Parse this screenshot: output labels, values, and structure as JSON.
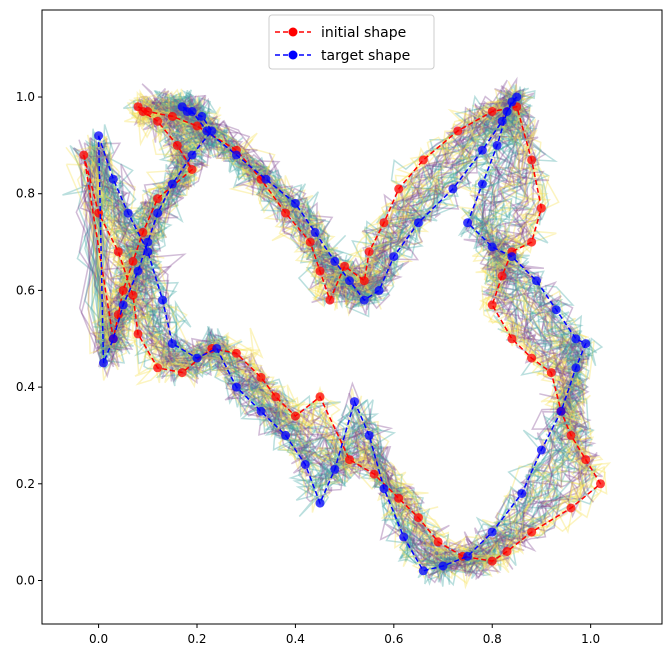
{
  "chart_data": {
    "type": "line",
    "title": "",
    "xlabel": "",
    "ylabel": "",
    "xlim": [
      -0.115,
      1.145
    ],
    "ylim": [
      -0.09,
      1.18
    ],
    "xticks": [
      0.0,
      0.2,
      0.4,
      0.6,
      0.8,
      1.0
    ],
    "yticks": [
      0.0,
      0.2,
      0.4,
      0.6,
      0.8,
      1.0
    ],
    "xtick_labels": [
      "0.0",
      "0.2",
      "0.4",
      "0.6",
      "0.8",
      "1.0"
    ],
    "ytick_labels": [
      "0.0",
      "0.2",
      "0.4",
      "0.6",
      "0.8",
      "1.0"
    ],
    "grid": false,
    "legend": {
      "placement": "top-center"
    },
    "series": [
      {
        "name": "initial shape",
        "color": "#ff0000",
        "linestyle": "dashed",
        "marker": "circle",
        "x": [
          -0.03,
          0.0,
          0.04,
          0.07,
          0.08,
          0.12,
          0.17,
          0.23,
          0.28,
          0.33,
          0.36,
          0.4,
          0.45,
          0.51,
          0.56,
          0.61,
          0.65,
          0.69,
          0.74,
          0.8,
          0.83,
          0.88,
          0.96,
          1.02,
          0.99,
          0.96,
          0.94,
          0.92,
          0.88,
          0.84,
          0.8,
          0.82,
          0.84,
          0.88,
          0.9,
          0.88,
          0.85,
          0.8,
          0.73,
          0.66,
          0.61,
          0.58,
          0.55,
          0.54,
          0.5,
          0.47,
          0.45,
          0.43,
          0.38,
          0.33,
          0.28,
          0.2,
          0.15,
          0.1,
          0.08,
          0.09,
          0.12,
          0.16,
          0.19,
          0.12,
          0.09,
          0.07,
          0.05,
          0.04,
          0.03
        ],
        "y": [
          0.88,
          0.76,
          0.68,
          0.59,
          0.51,
          0.44,
          0.43,
          0.48,
          0.47,
          0.42,
          0.38,
          0.34,
          0.38,
          0.25,
          0.22,
          0.17,
          0.13,
          0.08,
          0.05,
          0.04,
          0.06,
          0.1,
          0.15,
          0.2,
          0.25,
          0.3,
          0.35,
          0.43,
          0.46,
          0.5,
          0.57,
          0.63,
          0.68,
          0.7,
          0.77,
          0.87,
          0.98,
          0.97,
          0.93,
          0.87,
          0.81,
          0.74,
          0.68,
          0.62,
          0.65,
          0.58,
          0.64,
          0.7,
          0.76,
          0.83,
          0.89,
          0.94,
          0.96,
          0.97,
          0.98,
          0.97,
          0.95,
          0.9,
          0.85,
          0.79,
          0.72,
          0.66,
          0.6,
          0.55,
          0.5
        ]
      },
      {
        "name": "target shape",
        "color": "#0000ff",
        "linestyle": "dashed",
        "marker": "circle",
        "x": [
          0.0,
          0.03,
          0.06,
          0.1,
          0.13,
          0.15,
          0.2,
          0.24,
          0.28,
          0.33,
          0.38,
          0.42,
          0.45,
          0.48,
          0.52,
          0.55,
          0.58,
          0.62,
          0.66,
          0.7,
          0.75,
          0.8,
          0.86,
          0.9,
          0.94,
          0.97,
          0.99,
          0.97,
          0.93,
          0.89,
          0.84,
          0.8,
          0.75,
          0.78,
          0.81,
          0.83,
          0.85,
          0.84,
          0.82,
          0.78,
          0.72,
          0.65,
          0.6,
          0.57,
          0.54,
          0.51,
          0.48,
          0.44,
          0.4,
          0.34,
          0.28,
          0.22,
          0.19,
          0.17,
          0.18,
          0.21,
          0.23,
          0.19,
          0.15,
          0.12,
          0.1,
          0.08,
          0.05,
          0.03,
          0.01
        ],
        "y": [
          0.92,
          0.83,
          0.76,
          0.68,
          0.58,
          0.49,
          0.46,
          0.48,
          0.4,
          0.35,
          0.3,
          0.24,
          0.16,
          0.23,
          0.37,
          0.3,
          0.19,
          0.09,
          0.02,
          0.03,
          0.05,
          0.1,
          0.18,
          0.27,
          0.35,
          0.44,
          0.49,
          0.5,
          0.56,
          0.62,
          0.67,
          0.69,
          0.74,
          0.82,
          0.9,
          0.97,
          1.0,
          0.99,
          0.95,
          0.89,
          0.81,
          0.74,
          0.67,
          0.6,
          0.58,
          0.62,
          0.66,
          0.72,
          0.78,
          0.83,
          0.88,
          0.93,
          0.97,
          0.98,
          0.97,
          0.96,
          0.93,
          0.88,
          0.82,
          0.76,
          0.7,
          0.64,
          0.57,
          0.5,
          0.45
        ]
      }
    ],
    "background_trajectories": {
      "description_colors": [
        "#7b3f8c",
        "#3aa3a0",
        "#f5e04a"
      ],
      "count": 45,
      "alpha": 0.35
    }
  },
  "legend": {
    "initial_label": "initial shape",
    "target_label": "target shape"
  }
}
